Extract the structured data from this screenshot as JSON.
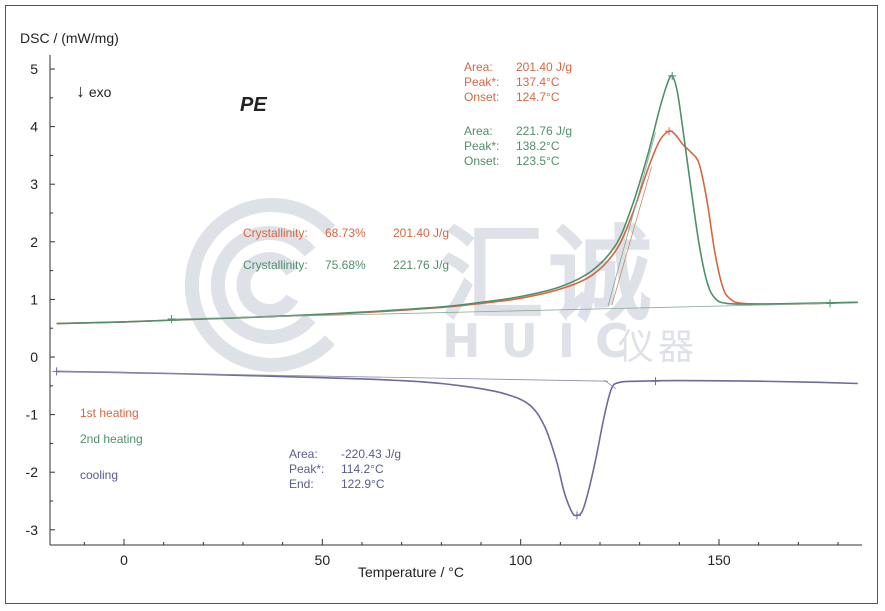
{
  "chart_data": {
    "type": "line",
    "title": "PE",
    "xlabel": "Temperature / °C",
    "ylabel": "DSC / (mW/mg)",
    "exo_label": "exo",
    "xlim": [
      -18,
      185
    ],
    "ylim": [
      -3.2,
      5.2
    ],
    "x_ticks": [
      0,
      50,
      100,
      150
    ],
    "x_tick_labels": [
      "0",
      "50",
      "100",
      "150"
    ],
    "y_ticks": [
      -3,
      -2,
      -1,
      0,
      1,
      2,
      3,
      4,
      5
    ],
    "y_tick_labels": [
      "-3",
      "-2",
      "-1",
      "0",
      "1",
      "2",
      "3",
      "4",
      "5"
    ],
    "grid": false,
    "series": [
      {
        "name": "1st heating",
        "color": "#d9653f",
        "points": [
          [
            -17,
            0.58
          ],
          [
            0,
            0.61
          ],
          [
            20,
            0.66
          ],
          [
            40,
            0.71
          ],
          [
            60,
            0.77
          ],
          [
            80,
            0.86
          ],
          [
            90,
            0.93
          ],
          [
            100,
            1.02
          ],
          [
            110,
            1.18
          ],
          [
            118,
            1.42
          ],
          [
            124,
            1.85
          ],
          [
            128,
            2.45
          ],
          [
            132,
            3.25
          ],
          [
            135,
            3.75
          ],
          [
            137.4,
            3.92
          ],
          [
            139,
            3.86
          ],
          [
            141,
            3.68
          ],
          [
            143,
            3.55
          ],
          [
            145,
            3.35
          ],
          [
            147,
            2.7
          ],
          [
            149,
            1.8
          ],
          [
            151,
            1.2
          ],
          [
            153,
            1.0
          ],
          [
            156,
            0.93
          ],
          [
            165,
            0.92
          ],
          [
            175,
            0.93
          ],
          [
            185,
            0.95
          ]
        ]
      },
      {
        "name": "2nd heating",
        "color": "#4f8f6b",
        "points": [
          [
            -17,
            0.58
          ],
          [
            0,
            0.61
          ],
          [
            20,
            0.66
          ],
          [
            40,
            0.71
          ],
          [
            60,
            0.78
          ],
          [
            80,
            0.87
          ],
          [
            90,
            0.95
          ],
          [
            100,
            1.05
          ],
          [
            110,
            1.22
          ],
          [
            118,
            1.5
          ],
          [
            124,
            1.95
          ],
          [
            128,
            2.6
          ],
          [
            132,
            3.5
          ],
          [
            135,
            4.3
          ],
          [
            137,
            4.75
          ],
          [
            138.2,
            4.88
          ],
          [
            139.5,
            4.6
          ],
          [
            141,
            3.9
          ],
          [
            143,
            2.9
          ],
          [
            145,
            1.95
          ],
          [
            147,
            1.3
          ],
          [
            149,
            1.02
          ],
          [
            152,
            0.93
          ],
          [
            160,
            0.92
          ],
          [
            170,
            0.93
          ],
          [
            185,
            0.95
          ]
        ]
      },
      {
        "name": "cooling",
        "color": "#6b6b9e",
        "points": [
          [
            -17,
            -0.25
          ],
          [
            0,
            -0.27
          ],
          [
            20,
            -0.3
          ],
          [
            40,
            -0.34
          ],
          [
            60,
            -0.38
          ],
          [
            75,
            -0.43
          ],
          [
            85,
            -0.5
          ],
          [
            95,
            -0.62
          ],
          [
            102,
            -0.82
          ],
          [
            106,
            -1.2
          ],
          [
            109,
            -1.8
          ],
          [
            111,
            -2.35
          ],
          [
            113,
            -2.7
          ],
          [
            114.2,
            -2.75
          ],
          [
            115.5,
            -2.68
          ],
          [
            117,
            -2.35
          ],
          [
            119,
            -1.75
          ],
          [
            121,
            -1.05
          ],
          [
            122.9,
            -0.55
          ],
          [
            125,
            -0.44
          ],
          [
            130,
            -0.42
          ],
          [
            140,
            -0.41
          ],
          [
            160,
            -0.42
          ],
          [
            175,
            -0.44
          ],
          [
            185,
            -0.46
          ]
        ]
      }
    ],
    "legend": [
      "1st heating",
      "2nd heating",
      "cooling"
    ],
    "annotations": {
      "heat1": {
        "area_label": "Area:",
        "area": "201.40 J/g",
        "peak_label": "Peak*:",
        "peak": "137.4°C",
        "onset_label": "Onset:",
        "onset": "124.7°C"
      },
      "heat2": {
        "area_label": "Area:",
        "area": "221.76 J/g",
        "peak_label": "Peak*:",
        "peak": "138.2°C",
        "onset_label": "Onset:",
        "onset": "123.5°C"
      },
      "cool": {
        "area_label": "Area:",
        "area": "-220.43 J/g",
        "peak_label": "Peak*:",
        "peak": "114.2°C",
        "end_label": "End:",
        "end": "122.9°C"
      },
      "cryst1": {
        "label": "Crystallinity:",
        "pct": "68.73%",
        "area": "201.40 J/g"
      },
      "cryst2": {
        "label": "Crystallinity:",
        "pct": "75.68%",
        "area": "221.76 J/g"
      }
    }
  },
  "watermark": {
    "cn": "汇诚",
    "en": "HUIC",
    "cn2": "仪器"
  }
}
